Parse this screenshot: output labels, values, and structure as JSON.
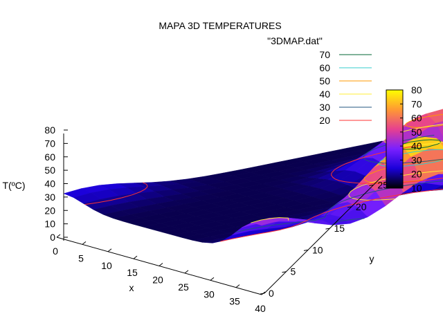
{
  "chart_data": {
    "type": "surface3d",
    "title": "MAPA 3D TEMPERATURES",
    "xlabel": "x",
    "ylabel": "y",
    "zlabel": "T(ºC)",
    "xlim": [
      0,
      40
    ],
    "ylim": [
      0,
      27
    ],
    "zlim": [
      0,
      80
    ],
    "x_ticks": [
      "0",
      "5",
      "10",
      "15",
      "20",
      "25",
      "30",
      "35",
      "40"
    ],
    "y_ticks": [
      "0",
      "5",
      "10",
      "15",
      "20",
      "25"
    ],
    "z_ticks": [
      "0",
      "10",
      "20",
      "30",
      "40",
      "50",
      "60",
      "70",
      "80"
    ],
    "series": [
      {
        "name": "\"3DMAP.dat\"",
        "kind": "surface",
        "baseline_temperature": 15,
        "hotspots": [
          {
            "x": 36,
            "y": 15,
            "peak_temperature": 76
          },
          {
            "x": 16,
            "y": 25,
            "peak_temperature": 58
          },
          {
            "x": 39,
            "y": 1,
            "peak_temperature": 42
          },
          {
            "x": 0,
            "y": 2,
            "peak_temperature": 25
          }
        ]
      }
    ],
    "contour_levels": [
      {
        "label": "70",
        "value": 70,
        "color": "#006633"
      },
      {
        "label": "60",
        "value": 60,
        "color": "#33cccc"
      },
      {
        "label": "50",
        "value": 50,
        "color": "#ff9900"
      },
      {
        "label": "40",
        "value": 40,
        "color": "#ffee33"
      },
      {
        "label": "30",
        "value": 30,
        "color": "#22557f"
      },
      {
        "label": "20",
        "value": 20,
        "color": "#ff3333"
      }
    ],
    "colorbar": {
      "min": 10,
      "max": 80,
      "ticks": [
        "10",
        "20",
        "30",
        "40",
        "50",
        "60",
        "70",
        "80"
      ],
      "palette": "black-blue-purple-red-orange-yellow"
    },
    "legend_position": "top-right",
    "grid": false
  }
}
